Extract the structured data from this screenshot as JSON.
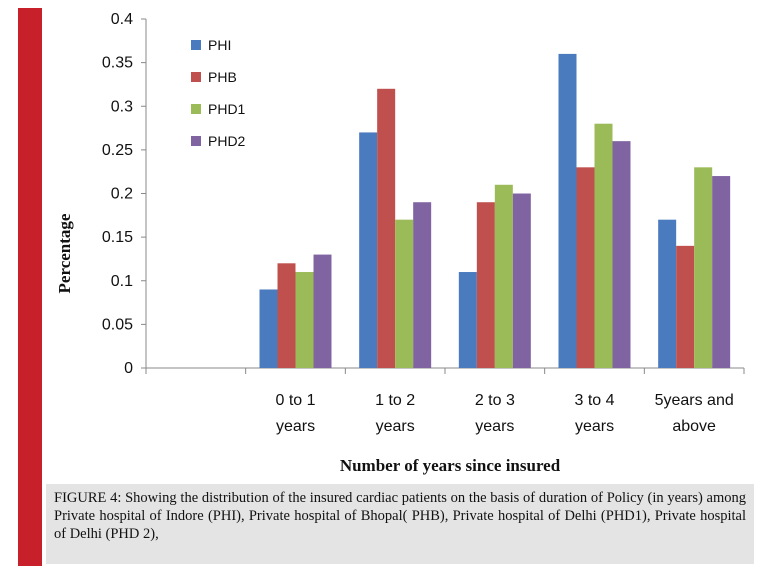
{
  "chart_data": {
    "type": "bar",
    "categories": [
      "0 to 1 years",
      "1 to 2 years",
      "2 to 3 years",
      "3 to 4 years",
      "5years and above"
    ],
    "category_label_lines": [
      [
        "0 to 1",
        "years"
      ],
      [
        "1 to 2",
        "years"
      ],
      [
        "2 to 3",
        "years"
      ],
      [
        "3 to 4",
        "years"
      ],
      [
        "5years and",
        "above"
      ]
    ],
    "series": [
      {
        "name": "PHI",
        "color": "#4a7bbf",
        "values": [
          0.09,
          0.27,
          0.11,
          0.36,
          0.17
        ]
      },
      {
        "name": "PHB",
        "color": "#c0504d",
        "values": [
          0.12,
          0.32,
          0.19,
          0.23,
          0.14
        ]
      },
      {
        "name": "PHD1",
        "color": "#9bbb59",
        "values": [
          0.11,
          0.17,
          0.21,
          0.28,
          0.23
        ]
      },
      {
        "name": "PHD2",
        "color": "#8064a2",
        "values": [
          0.13,
          0.19,
          0.2,
          0.26,
          0.22
        ]
      }
    ],
    "ylim": [
      0,
      0.4
    ],
    "yticks": [
      "0",
      "0.05",
      "0.1",
      "0.15",
      "0.2",
      "0.25",
      "0.3",
      "0.35",
      "0.4"
    ],
    "xlabel": "Number of years since insured",
    "ylabel": "Percentage",
    "legend_position": "top-left",
    "grid": false
  },
  "caption": "FIGURE 4: Showing the distribution of the insured cardiac patients on the basis of duration of Policy (in years) among Private hospital of Indore (PHI), Private hospital of Bhopal( PHB), Private hospital of Delhi (PHD1), Private hospital of Delhi (PHD 2),"
}
